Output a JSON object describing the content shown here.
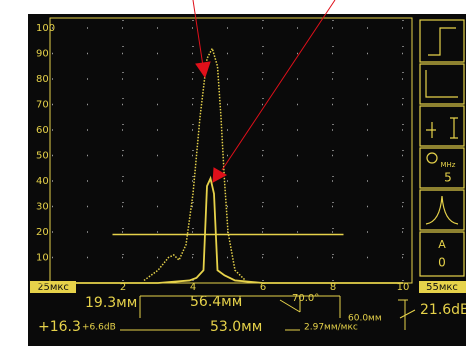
{
  "chart_data": {
    "type": "line",
    "xlim": [
      0,
      10
    ],
    "ylim": [
      0,
      100
    ],
    "xticks": [
      2,
      4,
      6,
      8,
      10
    ],
    "yticks": [
      10,
      20,
      30,
      40,
      50,
      60,
      70,
      80,
      90,
      100
    ],
    "grid": true,
    "x_start_label": "25мкс",
    "x_end_label": "55мкс",
    "series": [
      {
        "name": "envelope",
        "style": "dotted",
        "color": "#e6d24a",
        "x": [
          2.6,
          3.0,
          3.3,
          3.45,
          3.6,
          3.8,
          4.0,
          4.2,
          4.4,
          4.55,
          4.7,
          4.8,
          4.9,
          5.0,
          5.2,
          5.5
        ],
        "values": [
          1,
          5,
          10,
          11,
          9,
          15,
          35,
          65,
          88,
          92,
          85,
          65,
          40,
          20,
          5,
          1
        ]
      },
      {
        "name": "echo",
        "style": "solid",
        "color": "#e6d24a",
        "x": [
          0,
          3.0,
          3.9,
          4.1,
          4.3,
          4.4,
          4.5,
          4.6,
          4.7,
          4.9,
          5.2,
          6.0,
          10
        ],
        "values": [
          0,
          0,
          1,
          2,
          5,
          38,
          41,
          35,
          5,
          3,
          1,
          0,
          0
        ]
      }
    ],
    "gate": {
      "level": 19,
      "start": 1.7,
      "end": 8.3
    }
  },
  "readouts": [
    "19.3мм",
    "56.4мм",
    "70.0°",
    "60.0мм",
    "21.6dB",
    "+16.3",
    "+6.6dB",
    "53.0мм",
    "2.97мм/мкс"
  ],
  "panel": [
    "MHz",
    "5",
    "A",
    "0"
  ]
}
